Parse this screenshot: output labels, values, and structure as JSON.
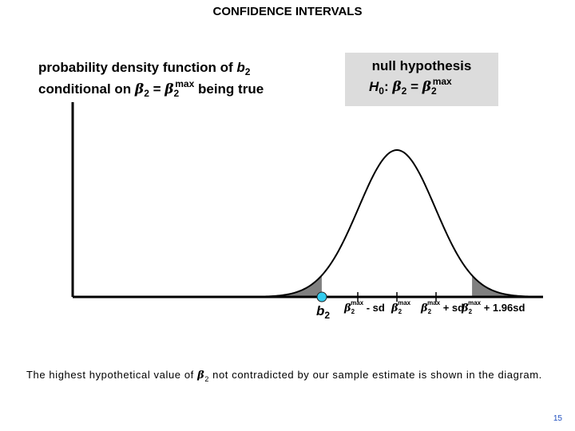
{
  "title": "CONFIDENCE INTERVALS",
  "pdf_label": {
    "line1_text": "probability density function of ",
    "line1_var": "b",
    "line1_sub": "2",
    "line2_text": "conditional on ",
    "beta": "β",
    "sub2": "2",
    "eq": " = ",
    "max": "max",
    "line2_end": " being true"
  },
  "null_hypothesis": {
    "heading": "null hypothesis",
    "h": "H",
    "h_sub": "0",
    "colon": ": ",
    "beta": "β",
    "sub2": "2",
    "eq": " = ",
    "max": "max"
  },
  "axis_labels": {
    "b2_var": "b",
    "b2_sub": "2",
    "beta": "β",
    "sub2": "2",
    "max": "max",
    "minus_sd": " - sd",
    "plus_sd": " + sd",
    "plus_196sd": " + 1.96sd"
  },
  "caption": {
    "part1": "The highest hypothetical value of ",
    "beta": "β",
    "sub2": "2",
    "part2": " not contradicted by our sample estimate is shown in the diagram."
  },
  "page_number": "15",
  "colors": {
    "curve": "#000000",
    "tail_shade": "#808080",
    "estimate_dot": "#33ccee",
    "null_box": "#dcdcdc"
  },
  "chart_data": {
    "type": "normal-density",
    "center": "β2max",
    "marked_points_sd": [
      -1.96,
      -1,
      0,
      1,
      1.96
    ],
    "shaded_tails_beyond_sd": 1.96,
    "estimate_point_sd": -1.96
  }
}
